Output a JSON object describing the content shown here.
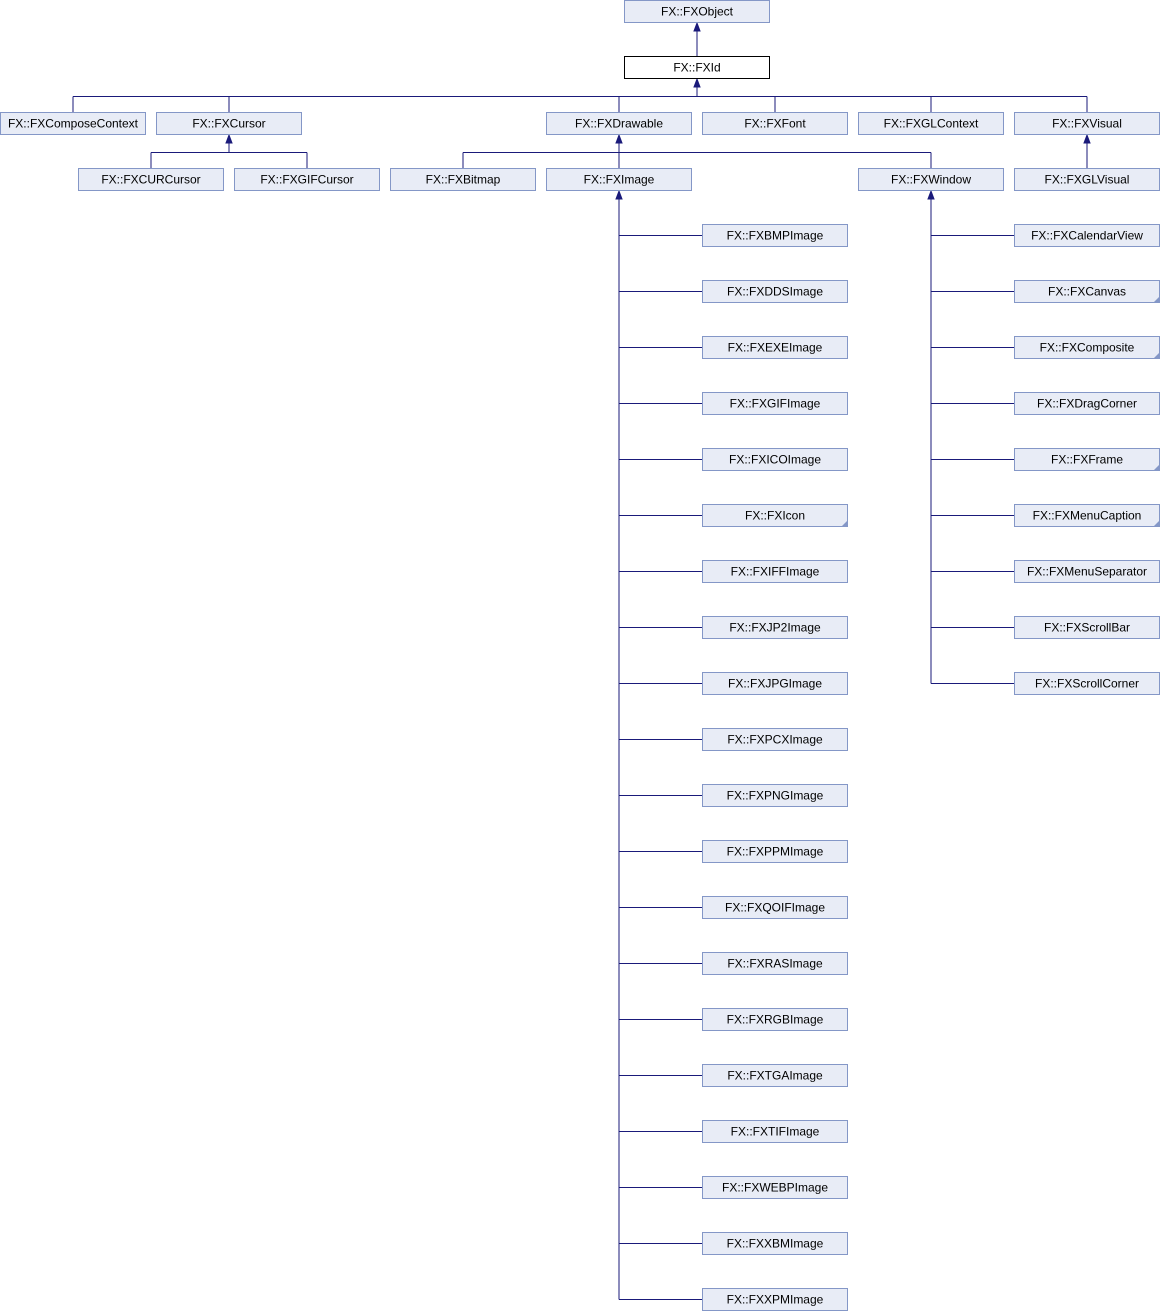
{
  "diagram": {
    "nodes": {
      "FXObject": "FX::FXObject",
      "FXId": "FX::FXId",
      "FXComposeContext": "FX::FXComposeContext",
      "FXCursor": "FX::FXCursor",
      "FXCURCursor": "FX::FXCURCursor",
      "FXGIFCursor": "FX::FXGIFCursor",
      "FXDrawable": "FX::FXDrawable",
      "FXBitmap": "FX::FXBitmap",
      "FXImage": "FX::FXImage",
      "FXBMPImage": "FX::FXBMPImage",
      "FXDDSImage": "FX::FXDDSImage",
      "FXEXEImage": "FX::FXEXEImage",
      "FXGIFImage": "FX::FXGIFImage",
      "FXICOImage": "FX::FXICOImage",
      "FXIcon": "FX::FXIcon",
      "FXIFFImage": "FX::FXIFFImage",
      "FXJP2Image": "FX::FXJP2Image",
      "FXJPGImage": "FX::FXJPGImage",
      "FXPCXImage": "FX::FXPCXImage",
      "FXPNGImage": "FX::FXPNGImage",
      "FXPPMImage": "FX::FXPPMImage",
      "FXQOIFImage": "FX::FXQOIFImage",
      "FXRASImage": "FX::FXRASImage",
      "FXRGBImage": "FX::FXRGBImage",
      "FXTGAImage": "FX::FXTGAImage",
      "FXTIFImage": "FX::FXTIFImage",
      "FXWEBPImage": "FX::FXWEBPImage",
      "FXXBMImage": "FX::FXXBMImage",
      "FXXPMImage": "FX::FXXPMImage",
      "FXWindow": "FX::FXWindow",
      "FXCalendarView": "FX::FXCalendarView",
      "FXCanvas": "FX::FXCanvas",
      "FXComposite": "FX::FXComposite",
      "FXDragCorner": "FX::FXDragCorner",
      "FXFrame": "FX::FXFrame",
      "FXMenuCaption": "FX::FXMenuCaption",
      "FXMenuSeparator": "FX::FXMenuSeparator",
      "FXScrollBar": "FX::FXScrollBar",
      "FXScrollCorner": "FX::FXScrollCorner",
      "FXFont": "FX::FXFont",
      "FXGLContext": "FX::FXGLContext",
      "FXVisual": "FX::FXVisual",
      "FXGLVisual": "FX::FXGLVisual"
    },
    "current_node": "FXId",
    "has_more_subclasses": [
      "FXIcon",
      "FXCanvas",
      "FXComposite",
      "FXFrame",
      "FXMenuCaption"
    ],
    "edges": [
      [
        "FXObject",
        "FXId"
      ],
      [
        "FXId",
        "FXComposeContext"
      ],
      [
        "FXId",
        "FXCursor"
      ],
      [
        "FXId",
        "FXDrawable"
      ],
      [
        "FXId",
        "FXFont"
      ],
      [
        "FXId",
        "FXGLContext"
      ],
      [
        "FXId",
        "FXVisual"
      ],
      [
        "FXCursor",
        "FXCURCursor"
      ],
      [
        "FXCursor",
        "FXGIFCursor"
      ],
      [
        "FXDrawable",
        "FXBitmap"
      ],
      [
        "FXDrawable",
        "FXImage"
      ],
      [
        "FXDrawable",
        "FXWindow"
      ],
      [
        "FXVisual",
        "FXGLVisual"
      ],
      [
        "FXImage",
        "FXBMPImage"
      ],
      [
        "FXImage",
        "FXDDSImage"
      ],
      [
        "FXImage",
        "FXEXEImage"
      ],
      [
        "FXImage",
        "FXGIFImage"
      ],
      [
        "FXImage",
        "FXICOImage"
      ],
      [
        "FXImage",
        "FXIcon"
      ],
      [
        "FXImage",
        "FXIFFImage"
      ],
      [
        "FXImage",
        "FXJP2Image"
      ],
      [
        "FXImage",
        "FXJPGImage"
      ],
      [
        "FXImage",
        "FXPCXImage"
      ],
      [
        "FXImage",
        "FXPNGImage"
      ],
      [
        "FXImage",
        "FXPPMImage"
      ],
      [
        "FXImage",
        "FXQOIFImage"
      ],
      [
        "FXImage",
        "FXRASImage"
      ],
      [
        "FXImage",
        "FXRGBImage"
      ],
      [
        "FXImage",
        "FXTGAImage"
      ],
      [
        "FXImage",
        "FXTIFImage"
      ],
      [
        "FXImage",
        "FXWEBPImage"
      ],
      [
        "FXImage",
        "FXXBMImage"
      ],
      [
        "FXImage",
        "FXXPMImage"
      ],
      [
        "FXWindow",
        "FXCalendarView"
      ],
      [
        "FXWindow",
        "FXCanvas"
      ],
      [
        "FXWindow",
        "FXComposite"
      ],
      [
        "FXWindow",
        "FXDragCorner"
      ],
      [
        "FXWindow",
        "FXFrame"
      ],
      [
        "FXWindow",
        "FXMenuCaption"
      ],
      [
        "FXWindow",
        "FXMenuSeparator"
      ],
      [
        "FXWindow",
        "FXScrollBar"
      ],
      [
        "FXWindow",
        "FXScrollCorner"
      ]
    ]
  }
}
